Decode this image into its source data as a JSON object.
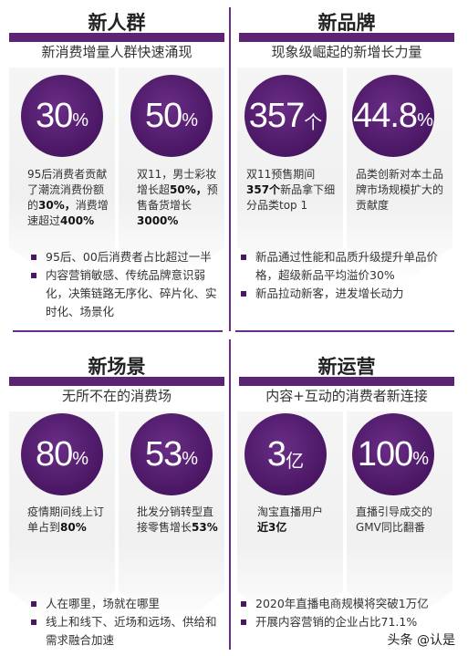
{
  "quadrants": [
    {
      "title": "新人群",
      "subtitle": "新消费增量人群快速涌现",
      "cards": [
        {
          "num": "30",
          "unit": "%",
          "desc_parts": [
            "95后消费者贡献了潮流消费份额的",
            "30%，",
            "消费增速超过",
            "400%",
            ""
          ]
        },
        {
          "num": "50",
          "unit": "%",
          "desc_parts": [
            "双11，男士彩妆增长超",
            "50%，",
            "预售备货增长",
            "3000%",
            ""
          ]
        }
      ],
      "bullets": [
        "95后、00后消费者占比超过一半",
        "内容营销敏感、传统品牌意识弱化，决策链路无序化、碎片化、实时化、场景化"
      ]
    },
    {
      "title": "新品牌",
      "subtitle": "现象级崛起的新增长力量",
      "cards": [
        {
          "num": "357",
          "unit": "个",
          "desc_parts": [
            "双11预售期间",
            "357个",
            "新品拿下细分品类top 1",
            "",
            ""
          ]
        },
        {
          "num": "44.8",
          "unit": "%",
          "desc_parts": [
            "品类创新对本土品牌市场规模扩大的贡献度",
            "",
            "",
            "",
            ""
          ]
        }
      ],
      "bullets": [
        "新品通过性能和品质升级提升单品价格，超级新品平均溢价30%",
        "新品拉动新客，进发增长动力"
      ]
    },
    {
      "title": "新场景",
      "subtitle": "无所不在的消费场",
      "cards": [
        {
          "num": "80",
          "unit": "%",
          "desc_parts": [
            "疫情期间线上订单占到",
            "80%",
            "",
            "",
            ""
          ]
        },
        {
          "num": "53",
          "unit": "%",
          "desc_parts": [
            "批发分销转型直接零售增长",
            "53%",
            "",
            "",
            ""
          ]
        }
      ],
      "bullets": [
        "人在哪里，场就在哪里",
        "线上和线下、近场和远场、供给和需求融合加速"
      ]
    },
    {
      "title": "新运营",
      "subtitle": "内容+互动的消费者新连接",
      "cards": [
        {
          "num": "3",
          "unit": "亿",
          "desc_parts": [
            "淘宝直播用户",
            "近3亿",
            "",
            "",
            ""
          ]
        },
        {
          "num": "100",
          "unit": "%",
          "desc_parts": [
            "直播引导成交的GMV同比翻番",
            "",
            "",
            "",
            ""
          ]
        }
      ],
      "bullets": [
        "2020年直播电商规模将突破1万亿",
        "开展内容营销的企业占比71.1%"
      ]
    }
  ],
  "watermark": "头条 @认是"
}
